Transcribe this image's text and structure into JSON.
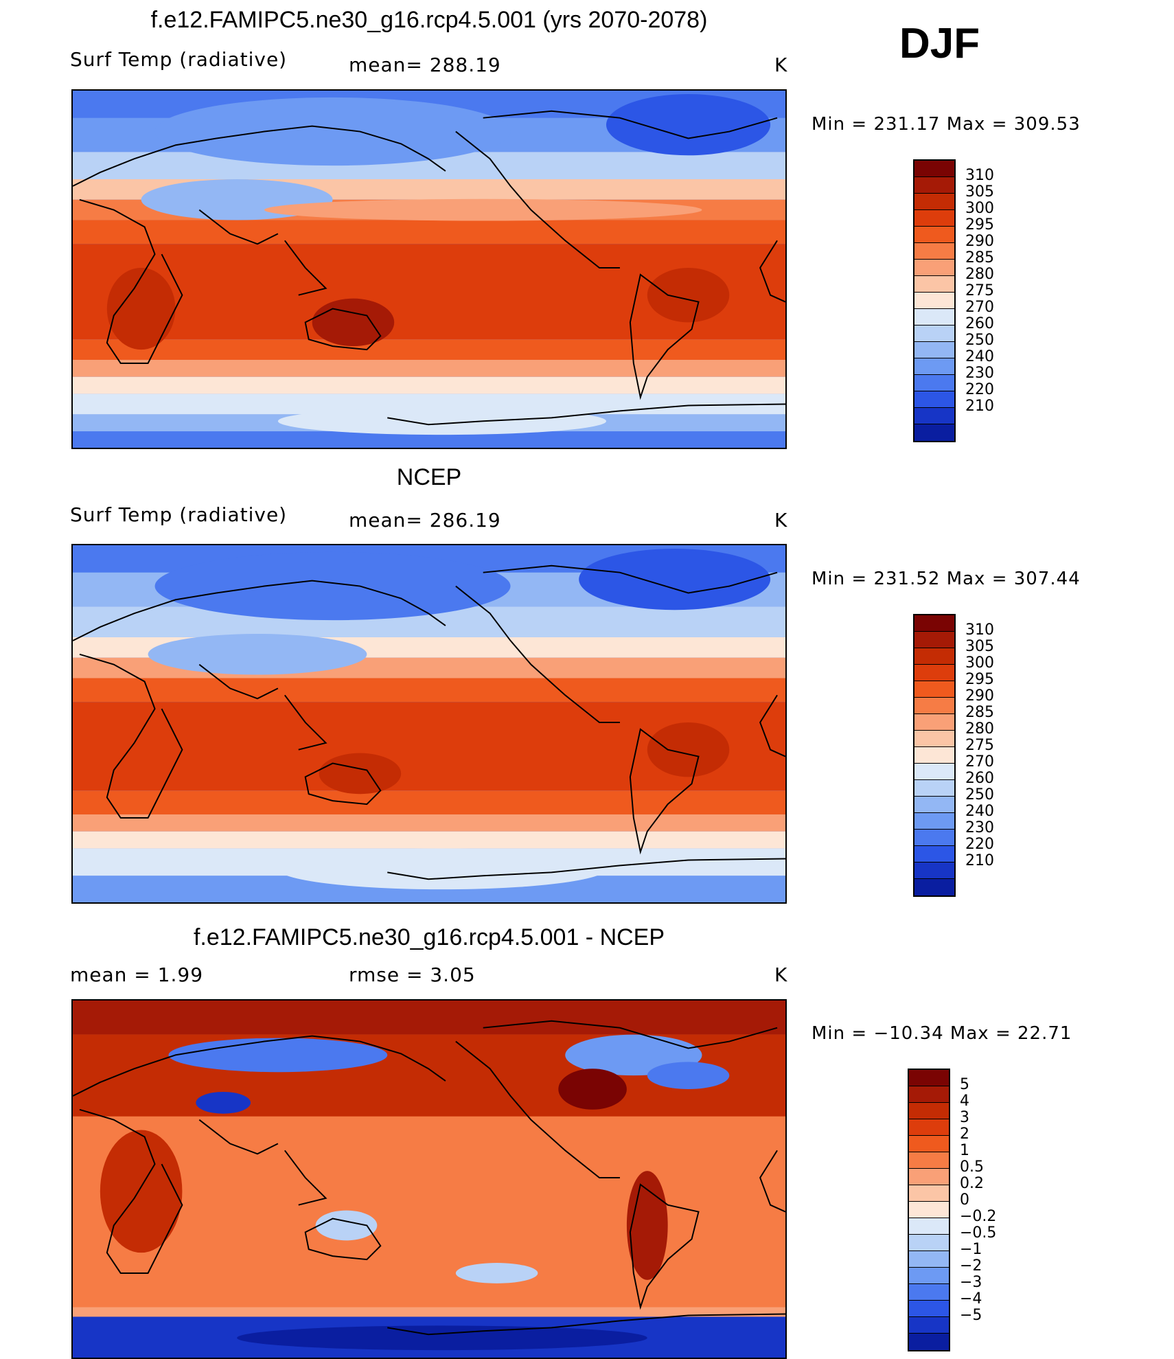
{
  "season": "DJF",
  "panels": [
    {
      "id": "model",
      "title": "f.e12.FAMIPC5.ne30_g16.rcp4.5.001 (yrs 2070-2078)",
      "left_label": "Surf Temp (radiative)",
      "middle_label": "mean=  288.19",
      "units": "K",
      "min_max": "Min  =  231.17  Max  =  309.53",
      "colorbar_labels": [
        "310",
        "305",
        "300",
        "295",
        "290",
        "285",
        "280",
        "275",
        "270",
        "260",
        "250",
        "240",
        "230",
        "220",
        "210"
      ],
      "colorbar_colors": [
        "#7a0403",
        "#a51a06",
        "#c42c04",
        "#dd3d0c",
        "#ef5a1e",
        "#f67c45",
        "#f9a077",
        "#fbc5a6",
        "#fde6d6",
        "#dbe8f8",
        "#b9d2f6",
        "#93b7f4",
        "#6d9af3",
        "#4b79ef",
        "#2c56e6",
        "#1735c6",
        "#0a1ea0"
      ]
    },
    {
      "id": "ncep",
      "title": "NCEP",
      "left_label": "Surf Temp (radiative)",
      "middle_label": "mean=  286.19",
      "units": "K",
      "min_max": "Min  =  231.52  Max  =  307.44",
      "colorbar_labels": [
        "310",
        "305",
        "300",
        "295",
        "290",
        "285",
        "280",
        "275",
        "270",
        "260",
        "250",
        "240",
        "230",
        "220",
        "210"
      ],
      "colorbar_colors": [
        "#7a0403",
        "#a51a06",
        "#c42c04",
        "#dd3d0c",
        "#ef5a1e",
        "#f67c45",
        "#f9a077",
        "#fbc5a6",
        "#fde6d6",
        "#dbe8f8",
        "#b9d2f6",
        "#93b7f4",
        "#6d9af3",
        "#4b79ef",
        "#2c56e6",
        "#1735c6",
        "#0a1ea0"
      ]
    },
    {
      "id": "diff",
      "title": "f.e12.FAMIPC5.ne30_g16.rcp4.5.001 - NCEP",
      "left_label": "mean  =     1.99",
      "middle_label": "rmse  =     3.05",
      "units": "K",
      "min_max": "Min  =  −10.34  Max  =    22.71",
      "colorbar_labels": [
        "5",
        "4",
        "3",
        "2",
        "1",
        "0.5",
        "0.2",
        "0",
        "−0.2",
        "−0.5",
        "−1",
        "−2",
        "−3",
        "−4",
        "−5"
      ],
      "colorbar_colors": [
        "#7a0403",
        "#a51a06",
        "#c42c04",
        "#dd3d0c",
        "#ef5a1e",
        "#f67c45",
        "#f9a077",
        "#fbc5a6",
        "#fde6d6",
        "#dbe8f8",
        "#b9d2f6",
        "#93b7f4",
        "#6d9af3",
        "#4b79ef",
        "#2c56e6",
        "#1735c6",
        "#0a1ea0"
      ]
    }
  ]
}
